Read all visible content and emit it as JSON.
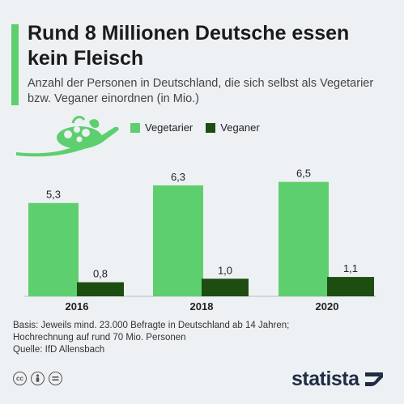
{
  "title": "Rund 8 Millionen Deutsche essen kein Fleisch",
  "subtitle": "Anzahl der Personen in Deutschland, die sich selbst als Vegetarier bzw. Veganer einordnen (in Mio.)",
  "footnote": {
    "line1": "Basis: Jeweils mind. 23.000 Befragte in Deutschland ab 14 Jahren;",
    "line2": "Hochrechnung auf rund 70 Mio. Personen",
    "line3": "Quelle: IfD Allensbach"
  },
  "brand": {
    "name": "statista"
  },
  "icons": [
    "creative-commons-icon",
    "attribution-icon",
    "no-derivatives-icon",
    "spoon-with-vegetables-icon",
    "statista-logo-icon"
  ],
  "colors": {
    "vegetarier": "#5ecf6e",
    "veganer": "#1e4d12",
    "accent": "#5ecf6e",
    "brand": "#1e2d44"
  },
  "chart_data": {
    "type": "bar",
    "categories": [
      "2016",
      "2018",
      "2020"
    ],
    "series": [
      {
        "name": "Vegetarier",
        "values": [
          5.3,
          6.3,
          6.5
        ],
        "labels": [
          "5,3",
          "6,3",
          "6,5"
        ]
      },
      {
        "name": "Veganer",
        "values": [
          0.8,
          1.0,
          1.1
        ],
        "labels": [
          "0,8",
          "1,0",
          "1,1"
        ]
      }
    ],
    "legend": "top",
    "grid": false
  }
}
